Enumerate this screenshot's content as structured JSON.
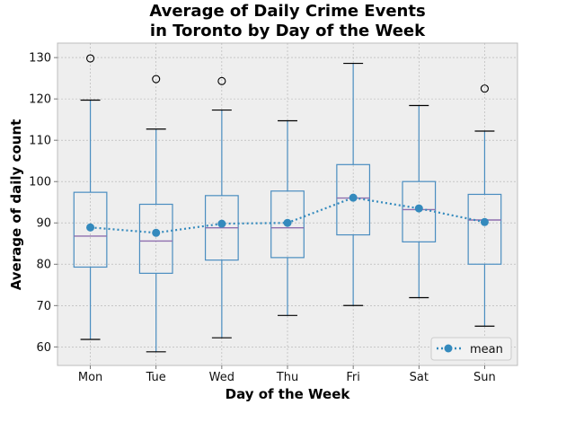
{
  "chart_data": {
    "type": "box",
    "title_line1": "Average of Daily Crime Events",
    "title_line2": "in Toronto by Day of the Week",
    "xlabel": "Day of the Week",
    "ylabel": "Average of daily count",
    "ylim": [
      55.5,
      133.5
    ],
    "yticks": [
      60,
      70,
      80,
      90,
      100,
      110,
      120,
      130
    ],
    "grid": true,
    "legend_position": "lower-right",
    "categories": [
      "Mon",
      "Tue",
      "Wed",
      "Thu",
      "Fri",
      "Sat",
      "Sun"
    ],
    "boxes": [
      {
        "whisker_low": 61.8,
        "q1": 79.3,
        "median": 86.8,
        "q3": 97.4,
        "whisker_high": 119.7,
        "outliers": [
          129.8
        ]
      },
      {
        "whisker_low": 58.8,
        "q1": 77.8,
        "median": 85.6,
        "q3": 94.5,
        "whisker_high": 112.7,
        "outliers": [
          124.8
        ]
      },
      {
        "whisker_low": 62.2,
        "q1": 81.0,
        "median": 88.8,
        "q3": 96.6,
        "whisker_high": 117.3,
        "outliers": [
          124.3
        ]
      },
      {
        "whisker_low": 67.6,
        "q1": 81.6,
        "median": 88.8,
        "q3": 97.7,
        "whisker_high": 114.7,
        "outliers": []
      },
      {
        "whisker_low": 70.0,
        "q1": 87.1,
        "median": 96.0,
        "q3": 104.1,
        "whisker_high": 128.6,
        "outliers": []
      },
      {
        "whisker_low": 71.9,
        "q1": 85.4,
        "median": 93.2,
        "q3": 100.0,
        "whisker_high": 118.4,
        "outliers": []
      },
      {
        "whisker_low": 65.0,
        "q1": 80.0,
        "median": 90.7,
        "q3": 96.9,
        "whisker_high": 112.2,
        "outliers": [
          122.5
        ]
      }
    ],
    "series": [
      {
        "name": "mean",
        "values": [
          88.9,
          87.6,
          89.8,
          90.0,
          96.1,
          93.5,
          90.2
        ]
      }
    ],
    "colors": {
      "plot_background": "#eeeeee",
      "grid": "#b0b0b0",
      "box": "#4a8dc0",
      "median": "#8e6fae",
      "whisker_cap": "#000000",
      "mean": "#348abd"
    }
  }
}
